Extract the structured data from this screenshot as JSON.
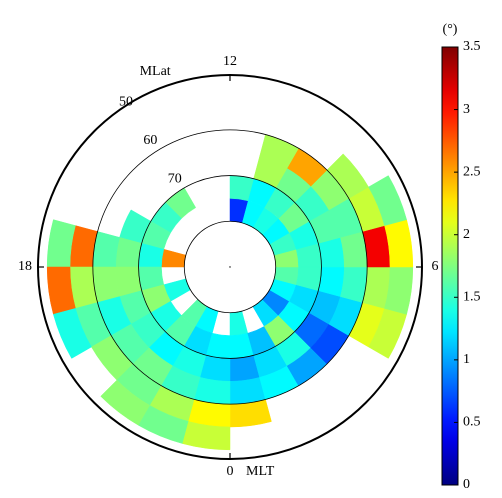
{
  "chart_data": {
    "type": "polar_heatmap",
    "r_label": "MLat",
    "theta_label": "MLT",
    "colorbar_label": "(°)",
    "colormap": "jet",
    "rlim": [
      90,
      48
    ],
    "rticks": [
      50,
      60,
      70
    ],
    "theta_ticks": [
      0,
      6,
      12,
      18
    ],
    "clim": [
      0,
      3.5
    ],
    "cticks": [
      0,
      0.5,
      1,
      1.5,
      2,
      2.5,
      3,
      3.5
    ],
    "lat_bins": [
      80,
      75,
      70,
      65,
      60,
      55,
      50
    ],
    "mlt_bins": [
      0,
      1,
      2,
      3,
      4,
      5,
      6,
      7,
      8,
      9,
      10,
      11,
      12,
      13,
      14,
      15,
      16,
      17,
      18,
      19,
      20,
      21,
      22,
      23,
      24
    ],
    "values": [
      [
        1.4,
        null,
        1.2,
        0.9,
        1.3,
        1.6,
        1.8,
        1.5,
        1.3,
        1.4,
        1.3,
        0.6,
        null,
        null,
        null,
        null,
        null,
        2.6,
        null,
        1.4,
        null,
        1.6,
        1.3,
        null
      ],
      [
        1.3,
        1.1,
        1.8,
        1.3,
        1.2,
        1.5,
        1.5,
        1.4,
        1.7,
        1.5,
        1.3,
        1.5,
        null,
        null,
        1.7,
        1.5,
        1.6,
        1.4,
        1.6,
        1.8,
        1.4,
        1.6,
        1.2,
        1.3
      ],
      [
        1.0,
        1.2,
        1.4,
        0.8,
        1.1,
        1.3,
        1.4,
        1.6,
        1.5,
        1.7,
        1.9,
        null,
        null,
        null,
        null,
        null,
        1.5,
        1.7,
        1.8,
        1.6,
        1.5,
        1.3,
        1.4,
        1.2
      ],
      [
        1.2,
        1.3,
        1.0,
        0.7,
        1.2,
        1.5,
        1.7,
        1.6,
        1.8,
        2.5,
        1.9,
        null,
        null,
        null,
        null,
        null,
        null,
        1.6,
        1.8,
        1.4,
        1.6,
        1.7,
        1.5,
        1.4
      ],
      [
        2.3,
        null,
        null,
        null,
        2.1,
        1.9,
        3.1,
        2.0,
        1.9,
        null,
        null,
        null,
        null,
        null,
        null,
        null,
        null,
        2.7,
        1.9,
        1.6,
        1.8,
        1.7,
        1.9,
        2.2
      ],
      [
        null,
        null,
        null,
        null,
        2.0,
        1.8,
        2.2,
        1.7,
        null,
        null,
        null,
        null,
        null,
        null,
        null,
        null,
        null,
        1.7,
        2.7,
        1.4,
        null,
        1.8,
        1.7,
        2.0
      ]
    ]
  }
}
